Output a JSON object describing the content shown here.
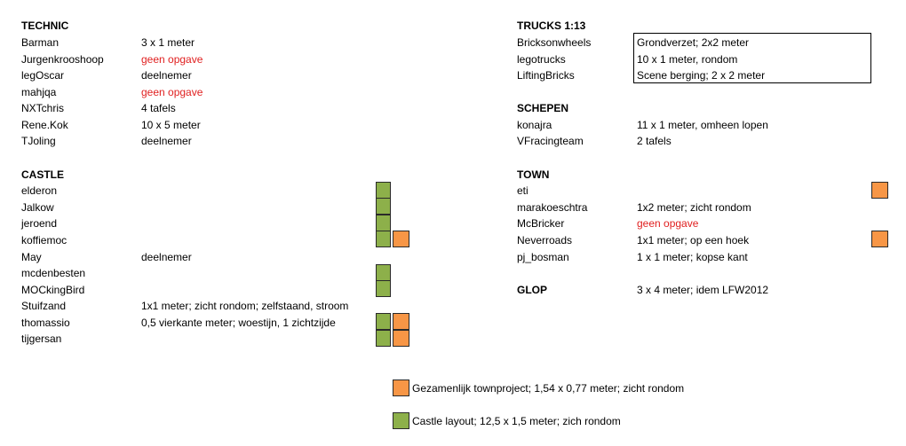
{
  "technic": {
    "heading": "TECHNIC",
    "rows": [
      {
        "name": "Barman",
        "note": "3 x 1 meter"
      },
      {
        "name": "Jurgenkrooshoop",
        "note": "geen opgave"
      },
      {
        "name": "legOscar",
        "note": "deelnemer"
      },
      {
        "name": "mahjqa",
        "note": "geen opgave"
      },
      {
        "name": "NXTchris",
        "note": "4 tafels"
      },
      {
        "name": "Rene.Kok",
        "note": "10 x 5 meter"
      },
      {
        "name": "TJoling",
        "note": "deelnemer"
      }
    ]
  },
  "castle": {
    "heading": "CASTLE",
    "rows": [
      {
        "name": "elderon",
        "note": ""
      },
      {
        "name": "Jalkow",
        "note": ""
      },
      {
        "name": "jeroend",
        "note": ""
      },
      {
        "name": "koffiemoc",
        "note": ""
      },
      {
        "name": "May",
        "note": "deelnemer"
      },
      {
        "name": "mcdenbesten",
        "note": ""
      },
      {
        "name": "MOCkingBird",
        "note": ""
      },
      {
        "name": "Stuifzand",
        "note": "1x1 meter; zicht rondom; zelfstaand, stroom"
      },
      {
        "name": "thomassio",
        "note": "0,5 vierkante meter; woestijn, 1 zichtzijde"
      },
      {
        "name": "tijgersan",
        "note": ""
      }
    ]
  },
  "trucks": {
    "heading": "TRUCKS 1:13",
    "rows": [
      {
        "name": "Bricksonwheels",
        "note": "Grondverzet; 2x2 meter"
      },
      {
        "name": "legotrucks",
        "note": "10 x 1 meter, rondom"
      },
      {
        "name": "LiftingBricks",
        "note": "Scene berging; 2 x 2 meter"
      }
    ]
  },
  "schepen": {
    "heading": "SCHEPEN",
    "rows": [
      {
        "name": "konajra",
        "note": "11 x 1 meter, omheen lopen"
      },
      {
        "name": "VFracingteam",
        "note": "2 tafels"
      }
    ]
  },
  "town": {
    "heading": "TOWN",
    "rows": [
      {
        "name": "eti",
        "note": ""
      },
      {
        "name": "marakoeschtra",
        "note": "1x2 meter; zicht rondom"
      },
      {
        "name": "McBricker",
        "note": "geen opgave"
      },
      {
        "name": "Neverroads",
        "note": "1x1 meter; op een hoek"
      },
      {
        "name": "pj_bosman",
        "note": "1 x 1 meter; kopse kant"
      }
    ]
  },
  "glop": {
    "heading": "GLOP",
    "note": "3 x 4 meter; idem LFW2012"
  },
  "legend": {
    "town": "Gezamenlijk townproject; 1,54 x 0,77 meter; zicht rondom",
    "castle": "Castle layout; 12,5 x 1,5 meter; zich rondom"
  },
  "colors": {
    "green": "#8db04a",
    "orange": "#f79646",
    "red_text": "#e02020"
  }
}
